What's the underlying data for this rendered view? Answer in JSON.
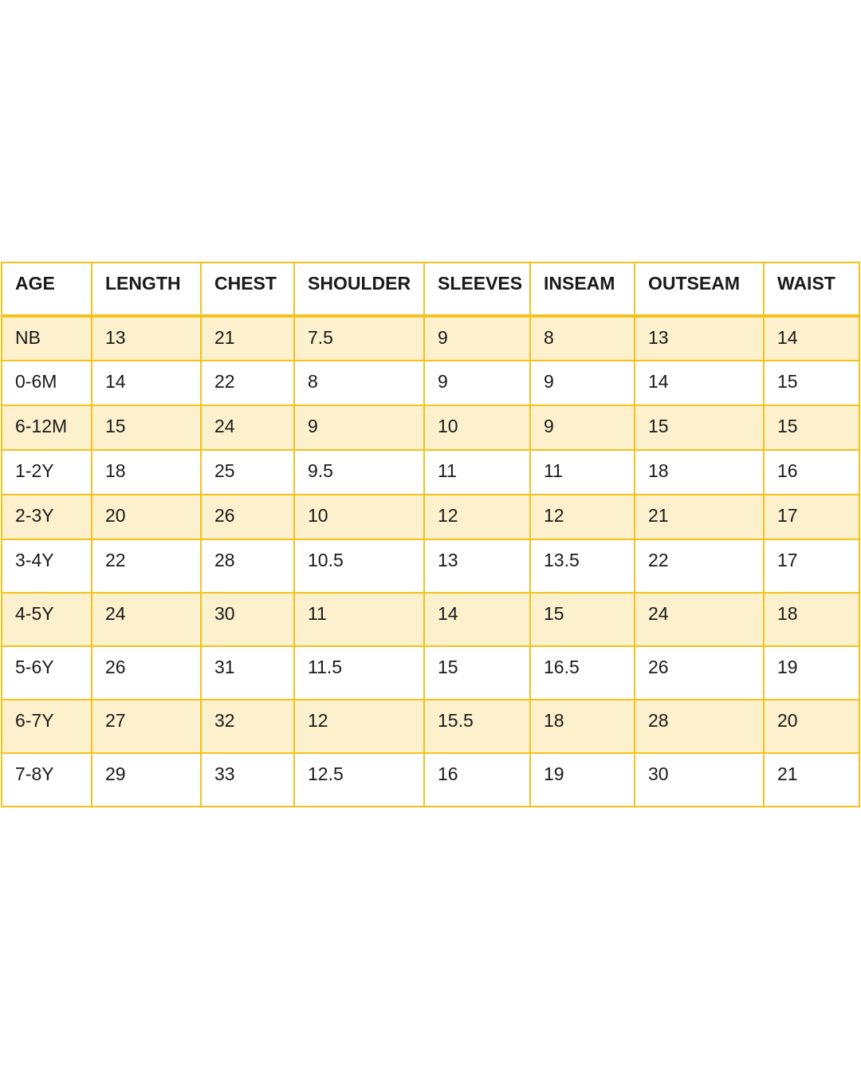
{
  "table": {
    "headers": [
      "AGE",
      "LENGTH",
      "CHEST",
      "SHOULDER",
      "SLEEVES",
      "INSEAM",
      "OUTSEAM",
      "WAIST"
    ],
    "rows": [
      [
        "NB",
        13,
        21,
        7.5,
        9,
        8,
        13,
        14
      ],
      [
        "0-6M",
        14,
        22,
        8,
        9,
        9,
        14,
        15
      ],
      [
        "6-12M",
        15,
        24,
        9,
        10,
        9,
        15,
        15
      ],
      [
        "1-2Y",
        18,
        25,
        9.5,
        11,
        11,
        18,
        16
      ],
      [
        "2-3Y",
        20,
        26,
        10,
        12,
        12,
        21,
        17
      ],
      [
        "3-4Y",
        22,
        28,
        10.5,
        13,
        13.5,
        22,
        17
      ],
      [
        "4-5Y",
        24,
        30,
        11,
        14,
        15,
        24,
        18
      ],
      [
        "5-6Y",
        26,
        31,
        11.5,
        15,
        16.5,
        26,
        19
      ],
      [
        "6-7Y",
        27,
        32,
        12,
        15.5,
        18,
        28,
        20
      ],
      [
        "7-8Y",
        29,
        33,
        12.5,
        16,
        19,
        30,
        21
      ]
    ]
  }
}
